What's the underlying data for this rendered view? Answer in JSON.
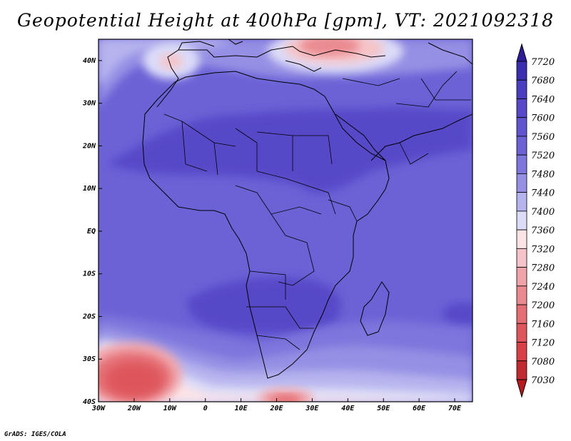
{
  "title": "Geopotential Height at 400hPa [gpm], VT: 2021092318",
  "credit": "GrADS: IGES/COLA",
  "map": {
    "variable": "Geopotential Height",
    "level": "400hPa",
    "units": "gpm",
    "valid_time": "2021092318",
    "projection": "lat-lon",
    "lon_range": [
      -30,
      75
    ],
    "lat_range": [
      -40,
      45
    ],
    "lon_ticks": [
      {
        "lon": -30,
        "label": "30W"
      },
      {
        "lon": -20,
        "label": "20W"
      },
      {
        "lon": -10,
        "label": "10W"
      },
      {
        "lon": 0,
        "label": "0"
      },
      {
        "lon": 10,
        "label": "10E"
      },
      {
        "lon": 20,
        "label": "20E"
      },
      {
        "lon": 30,
        "label": "30E"
      },
      {
        "lon": 40,
        "label": "40E"
      },
      {
        "lon": 50,
        "label": "50E"
      },
      {
        "lon": 60,
        "label": "60E"
      },
      {
        "lon": 70,
        "label": "70E"
      }
    ],
    "lat_ticks": [
      {
        "lat": 40,
        "label": "40N"
      },
      {
        "lat": 30,
        "label": "30N"
      },
      {
        "lat": 20,
        "label": "20N"
      },
      {
        "lat": 10,
        "label": "10N"
      },
      {
        "lat": 0,
        "label": "EQ"
      },
      {
        "lat": -10,
        "label": "10S"
      },
      {
        "lat": -20,
        "label": "20S"
      },
      {
        "lat": -30,
        "label": "30S"
      },
      {
        "lat": -40,
        "label": "40S"
      }
    ]
  },
  "colorbar": {
    "levels": [
      "7720",
      "7680",
      "7640",
      "7600",
      "7560",
      "7520",
      "7480",
      "7440",
      "7400",
      "7360",
      "7320",
      "7280",
      "7240",
      "7200",
      "7160",
      "7120",
      "7080",
      "7030"
    ],
    "colors": [
      "#2c1c9a",
      "#3a2db0",
      "#4a3ec0",
      "#5648c8",
      "#6054d0",
      "#6b62d6",
      "#7d76dc",
      "#9590e4",
      "#b6b4ee",
      "#dcdcf8",
      "#fce4e6",
      "#f6c4c8",
      "#f0a4aa",
      "#ea8a90",
      "#e46e74",
      "#de565c",
      "#d84046",
      "#c02a30"
    ],
    "bottom_color": "#b8181e"
  }
}
